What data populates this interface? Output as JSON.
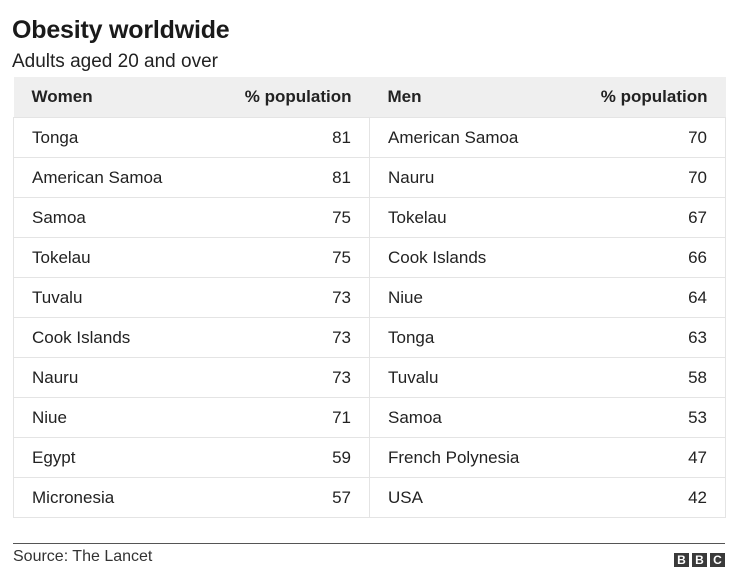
{
  "title": "Obesity worldwide",
  "subtitle": "Adults aged 20 and over",
  "table": {
    "headers": [
      "Women",
      "% population",
      "Men",
      "% population"
    ],
    "rows": [
      [
        "Tonga",
        "81",
        "American Samoa",
        "70"
      ],
      [
        "American Samoa",
        "81",
        "Nauru",
        "70"
      ],
      [
        "Samoa",
        "75",
        "Tokelau",
        "67"
      ],
      [
        "Tokelau",
        "75",
        "Cook Islands",
        "66"
      ],
      [
        "Tuvalu",
        "73",
        "Niue",
        "64"
      ],
      [
        "Cook Islands",
        "73",
        "Tonga",
        "63"
      ],
      [
        "Nauru",
        "73",
        "Tuvalu",
        "58"
      ],
      [
        "Niue",
        "71",
        "Samoa",
        "53"
      ],
      [
        "Egypt",
        "59",
        "French Polynesia",
        "47"
      ],
      [
        "Micronesia",
        "57",
        "USA",
        "42"
      ]
    ]
  },
  "source": "Source: The Lancet",
  "logo": {
    "letters": [
      "B",
      "B",
      "C"
    ],
    "box_color": "#3a3a3a"
  },
  "colors": {
    "header_background": "#efefef",
    "row_divider": "#e4e4e4",
    "text": "#222222"
  }
}
